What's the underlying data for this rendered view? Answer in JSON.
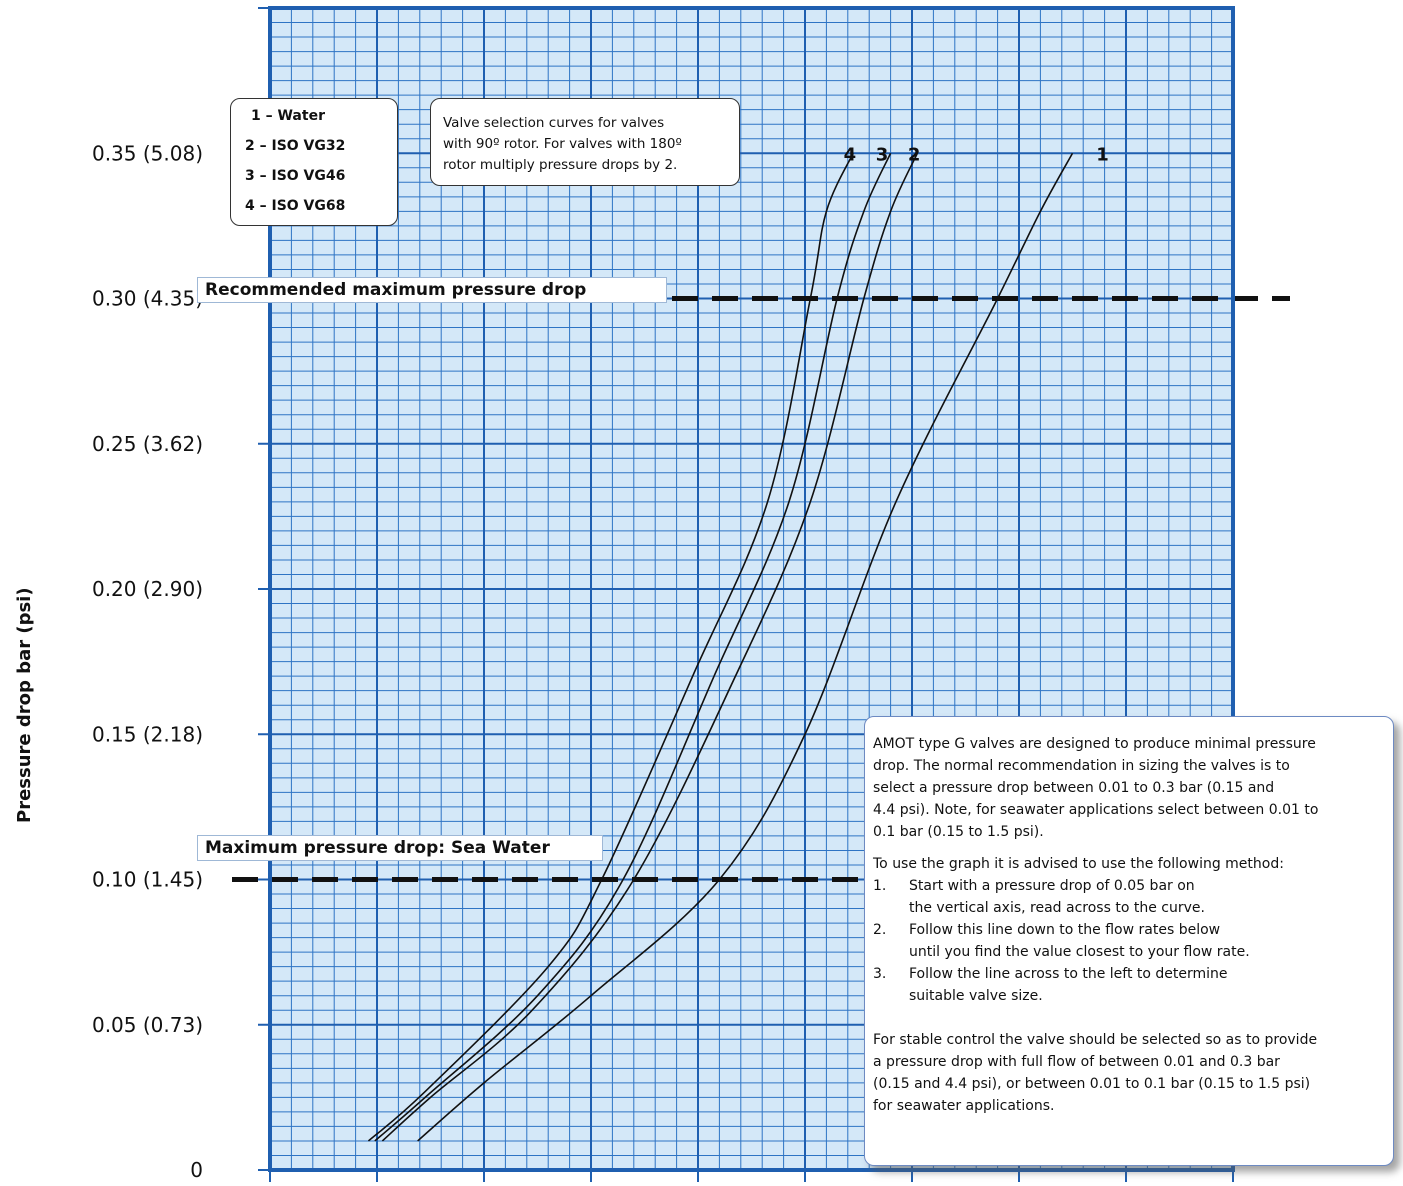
{
  "chart_data": {
    "type": "line",
    "title": "",
    "ylabel": "Pressure drop bar (psi)",
    "xlabel": "",
    "ylim": [
      0,
      0.4
    ],
    "y_ticks": [
      {
        "value": 0,
        "label": "0"
      },
      {
        "value": 0.05,
        "label": "0.05 (0.73)"
      },
      {
        "value": 0.1,
        "label": "0.10 (1.45)"
      },
      {
        "value": 0.15,
        "label": "0.15 (2.18)"
      },
      {
        "value": 0.2,
        "label": "0.20 (2.90)"
      },
      {
        "value": 0.25,
        "label": "0.25 (3.62)"
      },
      {
        "value": 0.3,
        "label": "0.30 (4.35)"
      },
      {
        "value": 0.35,
        "label": "0.35 (5.08)"
      }
    ],
    "x_range": [
      0,
      9
    ],
    "grid": true,
    "series": [
      {
        "name": "1",
        "points": [
          [
            1.38,
            0.01
          ],
          [
            2.0,
            0.03
          ],
          [
            3.0,
            0.06
          ],
          [
            4.2,
            0.1
          ],
          [
            5.0,
            0.15
          ],
          [
            5.85,
            0.23
          ],
          [
            6.8,
            0.3
          ],
          [
            7.2,
            0.33
          ],
          [
            7.5,
            0.35
          ]
        ]
      },
      {
        "name": "2",
        "points": [
          [
            1.05,
            0.01
          ],
          [
            1.5,
            0.025
          ],
          [
            2.45,
            0.055
          ],
          [
            3.4,
            0.1
          ],
          [
            4.35,
            0.17
          ],
          [
            5.05,
            0.23
          ],
          [
            5.55,
            0.3
          ],
          [
            5.8,
            0.33
          ],
          [
            6.05,
            0.35
          ]
        ]
      },
      {
        "name": "3",
        "points": [
          [
            0.98,
            0.01
          ],
          [
            1.45,
            0.025
          ],
          [
            2.5,
            0.06
          ],
          [
            3.3,
            0.1
          ],
          [
            4.15,
            0.17
          ],
          [
            4.85,
            0.23
          ],
          [
            5.3,
            0.3
          ],
          [
            5.55,
            0.33
          ],
          [
            5.8,
            0.35
          ]
        ]
      },
      {
        "name": "4",
        "points": [
          [
            0.92,
            0.01
          ],
          [
            1.45,
            0.027
          ],
          [
            2.6,
            0.07
          ],
          [
            3.1,
            0.1
          ],
          [
            3.95,
            0.17
          ],
          [
            4.65,
            0.23
          ],
          [
            5.05,
            0.3
          ],
          [
            5.2,
            0.33
          ],
          [
            5.45,
            0.35
          ]
        ]
      }
    ],
    "curve_labels": [
      {
        "text": "4",
        "x": 5.42,
        "y": 0.35
      },
      {
        "text": "3",
        "x": 5.72,
        "y": 0.35
      },
      {
        "text": "2",
        "x": 6.02,
        "y": 0.35
      },
      {
        "text": "1",
        "x": 7.78,
        "y": 0.35
      }
    ],
    "reference_lines": [
      {
        "value": 0.3,
        "label": "Recommended maximum pressure drop"
      },
      {
        "value": 0.1,
        "label": "Maximum pressure drop: Sea Water"
      }
    ],
    "legend": {
      "placement": "top-left",
      "items": [
        "1 – Water",
        "2 – ISO VG32",
        "3 – ISO VG46",
        "4 – ISO VG68"
      ]
    },
    "annotations": [
      "Valve selection curves for valves",
      "with 90º rotor. For valves with 180º",
      "rotor multiply pressure drops by 2."
    ],
    "colors": {
      "grid_major": "#1f5fb0",
      "grid_minor": "#2e74c4",
      "plot_bg": "#d4e8f8",
      "curves": "#111111",
      "ref_line": "#111111"
    }
  },
  "info": {
    "p1": [
      "AMOT type G valves are designed to produce minimal pressure",
      "drop. The normal recommendation in sizing the valves is to",
      "select a pressure drop between 0.01 to 0.3 bar (0.15 and",
      "4.4 psi). Note, for seawater applications select between 0.01 to",
      "0.1 bar (0.15 to 1.5 psi)."
    ],
    "p2_intro": "To use the graph it is advised to use the following method:",
    "steps": [
      {
        "num": "1.",
        "line1": "Start with a pressure drop of 0.05 bar on",
        "line2": "the vertical axis, read across to the curve."
      },
      {
        "num": "2.",
        "line1": "Follow this line down to the flow rates below",
        "line2": "until you find the value closest to your flow rate."
      },
      {
        "num": "3.",
        "line1": "Follow the line across to the left to determine",
        "line2": "suitable valve size."
      }
    ],
    "p3": [
      "For stable control the valve should be selected so as to provide",
      "a pressure drop with full flow of between 0.01 and 0.3 bar",
      "(0.15 and 4.4 psi), or between 0.01 to 0.1 bar (0.15 to 1.5 psi)",
      "for seawater applications."
    ]
  }
}
